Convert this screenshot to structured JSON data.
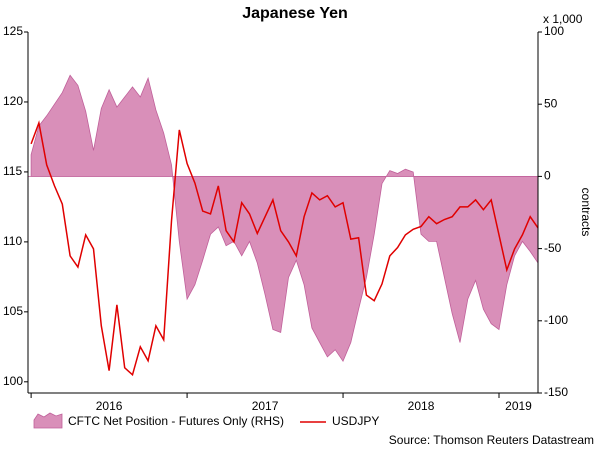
{
  "chart_data": {
    "type": "line",
    "title": "Japanese Yen",
    "y2_unit": "x 1,000",
    "y2_label": "contracts",
    "source": "Source: Thomson Reuters Datastream",
    "x": [
      2016.0,
      2016.05,
      2016.1,
      2016.15,
      2016.2,
      2016.25,
      2016.3,
      2016.35,
      2016.4,
      2016.45,
      2016.5,
      2016.55,
      2016.6,
      2016.65,
      2016.7,
      2016.75,
      2016.8,
      2016.85,
      2016.9,
      2016.95,
      2017.0,
      2017.05,
      2017.1,
      2017.15,
      2017.2,
      2017.25,
      2017.3,
      2017.35,
      2017.4,
      2017.45,
      2017.5,
      2017.55,
      2017.6,
      2017.65,
      2017.7,
      2017.75,
      2017.8,
      2017.85,
      2017.9,
      2017.95,
      2018.0,
      2018.05,
      2018.1,
      2018.15,
      2018.2,
      2018.25,
      2018.3,
      2018.35,
      2018.4,
      2018.45,
      2018.5,
      2018.55,
      2018.6,
      2018.65,
      2018.7,
      2018.75,
      2018.8,
      2018.85,
      2018.9,
      2018.95,
      2019.0,
      2019.05,
      2019.1,
      2019.15,
      2019.2,
      2019.25
    ],
    "series": [
      {
        "name": "CFTC Net Position - Futures Only (RHS)",
        "kind": "area",
        "axis": "y2",
        "color": "#d98fb9",
        "edge": "#c0609a",
        "values": [
          15,
          35,
          42,
          50,
          58,
          70,
          63,
          45,
          18,
          47,
          60,
          48,
          55,
          62,
          55,
          68,
          46,
          30,
          8,
          -45,
          -85,
          -75,
          -58,
          -40,
          -35,
          -48,
          -45,
          -55,
          -45,
          -60,
          -82,
          -106,
          -108,
          -70,
          -58,
          -75,
          -105,
          -115,
          -125,
          -120,
          -128,
          -115,
          -92,
          -70,
          -40,
          -5,
          4,
          2,
          5,
          3,
          -40,
          -45,
          -45,
          -70,
          -95,
          -115,
          -85,
          -72,
          -92,
          -102,
          -106,
          -75,
          -55,
          -45,
          -52,
          -60
        ]
      },
      {
        "name": "USDJPY",
        "kind": "line",
        "axis": "y",
        "color": "#e00000",
        "values": [
          117,
          118.5,
          115.5,
          114,
          112.7,
          109,
          108.2,
          110.5,
          109.5,
          104,
          100.8,
          105.5,
          101,
          100.5,
          102.5,
          101.5,
          104,
          103,
          111.5,
          118,
          115.6,
          114.2,
          112.2,
          112,
          114,
          110.8,
          110,
          112.8,
          112,
          110.6,
          111.8,
          113,
          110.8,
          110,
          109,
          111.8,
          113.5,
          113,
          113.3,
          112.5,
          112.8,
          110.2,
          110.3,
          106.2,
          105.8,
          107,
          109,
          109.6,
          110.5,
          110.9,
          111.1,
          111.8,
          111.3,
          111.6,
          111.8,
          112.5,
          112.5,
          113,
          112.3,
          113,
          110.5,
          108,
          109.5,
          110.5,
          111.8,
          111
        ]
      }
    ],
    "xlim": [
      2015.98,
      2019.25
    ],
    "xticks": [
      {
        "value": 2016,
        "label": "2016"
      },
      {
        "value": 2017,
        "label": "2017"
      },
      {
        "value": 2018,
        "label": "2018"
      },
      {
        "value": 2019,
        "label": "2019"
      }
    ],
    "ylim": [
      99.2,
      125
    ],
    "yticks": [
      100,
      105,
      110,
      115,
      120,
      125
    ],
    "y2lim": [
      -150,
      100
    ],
    "y2ticks": [
      -150,
      -100,
      -50,
      0,
      50,
      100
    ],
    "grid": false
  }
}
